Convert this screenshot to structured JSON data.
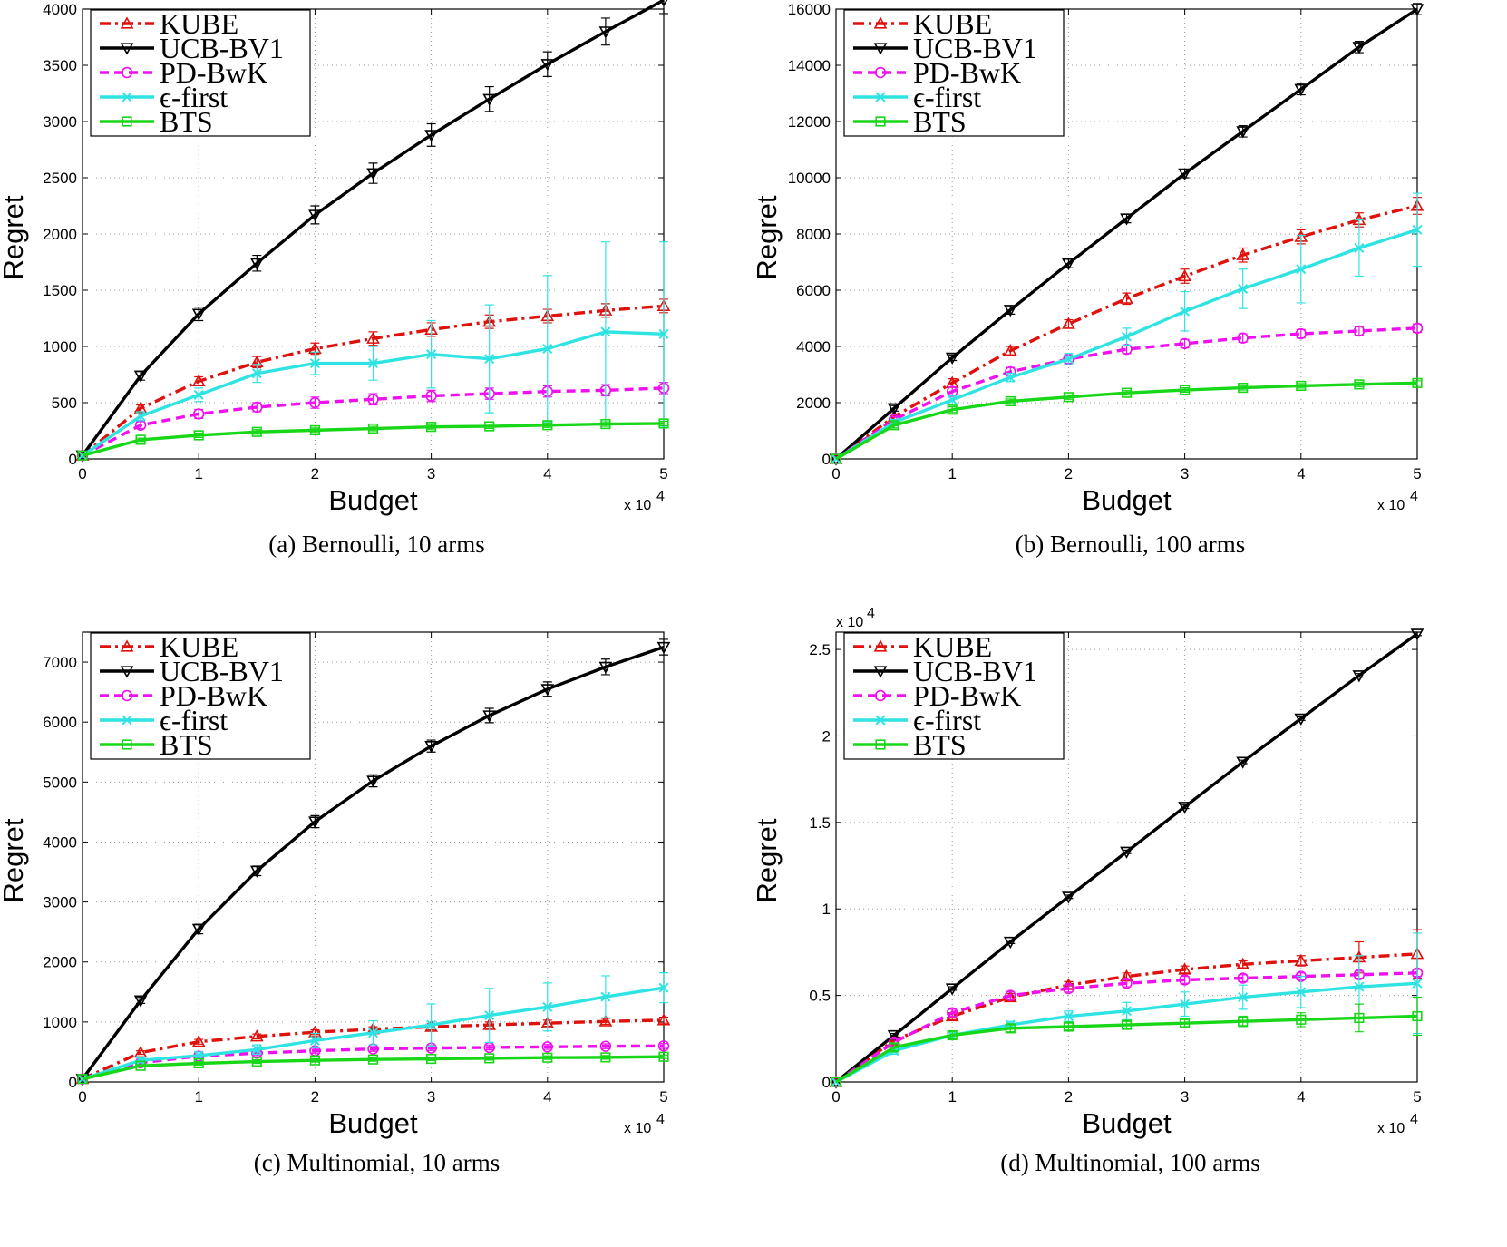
{
  "chart_data": [
    {
      "type": "line",
      "caption": "(a)  Bernoulli, 10 arms",
      "xlabel": "Budget",
      "ylabel": "Regret",
      "x_multiplier": "x 10",
      "x_multiplier_exp": "4",
      "y_multiplier": "",
      "y_multiplier_exp": "",
      "xlim": [
        0,
        5
      ],
      "ylim": [
        0,
        4000
      ],
      "xticks": [
        0,
        1,
        2,
        3,
        4,
        5
      ],
      "xtick_labels": [
        "0",
        "1",
        "2",
        "3",
        "4",
        "5"
      ],
      "yticks": [
        0,
        500,
        1000,
        1500,
        2000,
        2500,
        3000,
        3500,
        4000
      ],
      "ytick_labels": [
        "0",
        "500",
        "1000",
        "1500",
        "2000",
        "2500",
        "3000",
        "3500",
        "4000"
      ],
      "grid": true,
      "legend_position": "top-left",
      "x": [
        0,
        0.5,
        1,
        1.5,
        2,
        2.5,
        3,
        3.5,
        4,
        4.5,
        5
      ],
      "series": [
        {
          "name": "KUBE",
          "color": "#e0100d",
          "dash": "dashdot",
          "marker": "triangle-up",
          "values": [
            30,
            450,
            690,
            860,
            980,
            1070,
            1150,
            1220,
            1270,
            1320,
            1360
          ],
          "errors": [
            0,
            30,
            40,
            50,
            50,
            60,
            60,
            60,
            60,
            60,
            60
          ]
        },
        {
          "name": "UCB-BV1",
          "color": "#000000",
          "dash": "solid",
          "marker": "triangle-down",
          "values": [
            30,
            740,
            1290,
            1740,
            2170,
            2540,
            2880,
            3200,
            3510,
            3800,
            4080
          ],
          "errors": [
            0,
            40,
            60,
            70,
            80,
            90,
            100,
            110,
            110,
            120,
            120
          ]
        },
        {
          "name": "PD-BwK",
          "color": "#ee10ee",
          "dash": "dashed",
          "marker": "circle",
          "values": [
            30,
            300,
            400,
            460,
            500,
            530,
            560,
            580,
            600,
            610,
            630
          ],
          "errors": [
            0,
            30,
            40,
            40,
            50,
            50,
            50,
            50,
            50,
            50,
            50
          ]
        },
        {
          "name": "ϵ-first",
          "color": "#2fe3e3",
          "dash": "solid",
          "marker": "x",
          "values": [
            30,
            380,
            570,
            760,
            850,
            850,
            930,
            890,
            980,
            1130,
            1110
          ],
          "errors": [
            0,
            40,
            60,
            80,
            100,
            150,
            300,
            480,
            650,
            800,
            820
          ]
        },
        {
          "name": "BTS",
          "color": "#18d618",
          "dash": "solid",
          "marker": "square",
          "values": [
            30,
            170,
            210,
            240,
            255,
            270,
            285,
            290,
            300,
            310,
            315
          ],
          "errors": [
            0,
            15,
            20,
            20,
            20,
            20,
            20,
            20,
            20,
            20,
            20
          ]
        }
      ]
    },
    {
      "type": "line",
      "caption": "(b)  Bernoulli, 100 arms",
      "xlabel": "Budget",
      "ylabel": "Regret",
      "x_multiplier": "x 10",
      "x_multiplier_exp": "4",
      "y_multiplier": "",
      "y_multiplier_exp": "",
      "xlim": [
        0,
        5
      ],
      "ylim": [
        0,
        16000
      ],
      "xticks": [
        0,
        1,
        2,
        3,
        4,
        5
      ],
      "xtick_labels": [
        "0",
        "1",
        "2",
        "3",
        "4",
        "5"
      ],
      "yticks": [
        0,
        2000,
        4000,
        6000,
        8000,
        10000,
        12000,
        14000,
        16000
      ],
      "ytick_labels": [
        "0",
        "2000",
        "4000",
        "6000",
        "8000",
        "10000",
        "12000",
        "14000",
        "16000"
      ],
      "grid": true,
      "legend_position": "top-left",
      "x": [
        0,
        0.5,
        1,
        1.5,
        2,
        2.5,
        3,
        3.5,
        4,
        4.5,
        5
      ],
      "series": [
        {
          "name": "KUBE",
          "color": "#e0100d",
          "dash": "dashdot",
          "marker": "triangle-up",
          "values": [
            0,
            1500,
            2700,
            3850,
            4800,
            5700,
            6500,
            7250,
            7900,
            8500,
            9000
          ],
          "errors": [
            0,
            100,
            150,
            150,
            150,
            200,
            250,
            250,
            250,
            250,
            300
          ]
        },
        {
          "name": "UCB-BV1",
          "color": "#000000",
          "dash": "solid",
          "marker": "triangle-down",
          "values": [
            0,
            1800,
            3600,
            5300,
            6950,
            8550,
            10150,
            11650,
            13150,
            14650,
            16000
          ],
          "errors": [
            0,
            100,
            100,
            150,
            150,
            150,
            150,
            200,
            200,
            200,
            200
          ]
        },
        {
          "name": "PD-BwK",
          "color": "#ee10ee",
          "dash": "dashed",
          "marker": "circle",
          "values": [
            0,
            1400,
            2400,
            3100,
            3550,
            3900,
            4100,
            4300,
            4450,
            4550,
            4650
          ],
          "errors": [
            0,
            100,
            150,
            150,
            150,
            150,
            150,
            150,
            150,
            150,
            150
          ]
        },
        {
          "name": "ϵ-first",
          "color": "#2fe3e3",
          "dash": "solid",
          "marker": "x",
          "values": [
            0,
            1300,
            2100,
            2900,
            3550,
            4350,
            5250,
            6050,
            6750,
            7500,
            8150
          ],
          "errors": [
            0,
            100,
            150,
            150,
            200,
            300,
            700,
            700,
            1200,
            1000,
            1300
          ]
        },
        {
          "name": "BTS",
          "color": "#18d618",
          "dash": "solid",
          "marker": "square",
          "values": [
            0,
            1200,
            1750,
            2050,
            2200,
            2350,
            2450,
            2530,
            2600,
            2650,
            2700
          ],
          "errors": [
            0,
            100,
            100,
            80,
            80,
            80,
            80,
            80,
            80,
            80,
            80
          ]
        }
      ]
    },
    {
      "type": "line",
      "caption": "(c)  Multinomial, 10 arms",
      "xlabel": "Budget",
      "ylabel": "Regret",
      "x_multiplier": "x 10",
      "x_multiplier_exp": "4",
      "y_multiplier": "",
      "y_multiplier_exp": "",
      "xlim": [
        0,
        5
      ],
      "ylim": [
        0,
        7500
      ],
      "xticks": [
        0,
        1,
        2,
        3,
        4,
        5
      ],
      "xtick_labels": [
        "0",
        "1",
        "2",
        "3",
        "4",
        "5"
      ],
      "yticks": [
        0,
        1000,
        2000,
        3000,
        4000,
        5000,
        6000,
        7000
      ],
      "ytick_labels": [
        "0",
        "1000",
        "2000",
        "3000",
        "4000",
        "5000",
        "6000",
        "7000"
      ],
      "grid": true,
      "legend_position": "top-left",
      "x": [
        0,
        0.5,
        1,
        1.5,
        2,
        2.5,
        3,
        3.5,
        4,
        4.5,
        5
      ],
      "series": [
        {
          "name": "KUBE",
          "color": "#e0100d",
          "dash": "dashdot",
          "marker": "triangle-up",
          "values": [
            50,
            490,
            670,
            760,
            830,
            880,
            920,
            950,
            980,
            1010,
            1030
          ],
          "errors": [
            0,
            30,
            40,
            40,
            40,
            40,
            50,
            50,
            50,
            50,
            50
          ]
        },
        {
          "name": "UCB-BV1",
          "color": "#000000",
          "dash": "solid",
          "marker": "triangle-down",
          "values": [
            50,
            1360,
            2550,
            3520,
            4340,
            5020,
            5600,
            6110,
            6550,
            6920,
            7250
          ],
          "errors": [
            0,
            50,
            80,
            80,
            100,
            100,
            100,
            120,
            120,
            130,
            130
          ]
        },
        {
          "name": "PD-BwK",
          "color": "#ee10ee",
          "dash": "dashed",
          "marker": "circle",
          "values": [
            50,
            320,
            430,
            480,
            520,
            550,
            565,
            575,
            585,
            595,
            600
          ],
          "errors": [
            0,
            30,
            30,
            40,
            40,
            40,
            40,
            40,
            40,
            40,
            40
          ]
        },
        {
          "name": "ϵ-first",
          "color": "#2fe3e3",
          "dash": "solid",
          "marker": "x",
          "values": [
            50,
            360,
            440,
            540,
            690,
            820,
            950,
            1110,
            1250,
            1420,
            1570
          ],
          "errors": [
            0,
            40,
            60,
            80,
            120,
            200,
            350,
            450,
            400,
            350,
            250
          ]
        },
        {
          "name": "BTS",
          "color": "#18d618",
          "dash": "solid",
          "marker": "square",
          "values": [
            50,
            270,
            310,
            340,
            360,
            375,
            385,
            395,
            405,
            410,
            420
          ],
          "errors": [
            0,
            20,
            30,
            30,
            30,
            30,
            30,
            30,
            30,
            30,
            30
          ]
        }
      ]
    },
    {
      "type": "line",
      "caption": "(d)  Multinomial, 100 arms",
      "xlabel": "Budget",
      "ylabel": "Regret",
      "x_multiplier": "x 10",
      "x_multiplier_exp": "4",
      "y_multiplier": "x 10",
      "y_multiplier_exp": "4",
      "xlim": [
        0,
        5
      ],
      "ylim": [
        0,
        2.6
      ],
      "xticks": [
        0,
        1,
        2,
        3,
        4,
        5
      ],
      "xtick_labels": [
        "0",
        "1",
        "2",
        "3",
        "4",
        "5"
      ],
      "yticks": [
        0,
        0.5,
        1,
        1.5,
        2,
        2.5
      ],
      "ytick_labels": [
        "0",
        "0.5",
        "1",
        "1.5",
        "2",
        "2.5"
      ],
      "grid": true,
      "legend_position": "top-left",
      "x": [
        0,
        0.5,
        1,
        1.5,
        2,
        2.5,
        3,
        3.5,
        4,
        4.5,
        5
      ],
      "series": [
        {
          "name": "KUBE",
          "color": "#e0100d",
          "dash": "dashdot",
          "marker": "triangle-up",
          "values": [
            0,
            0.24,
            0.38,
            0.49,
            0.56,
            0.61,
            0.65,
            0.68,
            0.7,
            0.72,
            0.74
          ],
          "errors": [
            0,
            0.02,
            0.02,
            0.02,
            0.02,
            0.02,
            0.02,
            0.02,
            0.03,
            0.09,
            0.14
          ]
        },
        {
          "name": "UCB-BV1",
          "color": "#000000",
          "dash": "solid",
          "marker": "triangle-down",
          "values": [
            0,
            0.27,
            0.54,
            0.81,
            1.07,
            1.33,
            1.59,
            1.85,
            2.1,
            2.35,
            2.59
          ],
          "errors": [
            0,
            0.01,
            0.01,
            0.01,
            0.01,
            0.01,
            0.01,
            0.01,
            0.01,
            0.01,
            0.01
          ]
        },
        {
          "name": "PD-BwK",
          "color": "#ee10ee",
          "dash": "dashed",
          "marker": "circle",
          "values": [
            0,
            0.23,
            0.4,
            0.5,
            0.54,
            0.57,
            0.59,
            0.6,
            0.61,
            0.62,
            0.63
          ],
          "errors": [
            0,
            0.02,
            0.02,
            0.02,
            0.02,
            0.02,
            0.02,
            0.02,
            0.02,
            0.02,
            0.02
          ]
        },
        {
          "name": "ϵ-first",
          "color": "#2fe3e3",
          "dash": "solid",
          "marker": "x",
          "values": [
            0,
            0.18,
            0.27,
            0.33,
            0.38,
            0.41,
            0.45,
            0.49,
            0.52,
            0.55,
            0.57
          ],
          "errors": [
            0,
            0.02,
            0.02,
            0.02,
            0.03,
            0.05,
            0.07,
            0.07,
            0.09,
            0.18,
            0.29
          ]
        },
        {
          "name": "BTS",
          "color": "#18d618",
          "dash": "solid",
          "marker": "square",
          "values": [
            0,
            0.2,
            0.27,
            0.31,
            0.32,
            0.33,
            0.34,
            0.35,
            0.36,
            0.37,
            0.38
          ],
          "errors": [
            0,
            0.02,
            0.02,
            0.02,
            0.02,
            0.02,
            0.02,
            0.03,
            0.04,
            0.08,
            0.11
          ]
        }
      ]
    }
  ]
}
